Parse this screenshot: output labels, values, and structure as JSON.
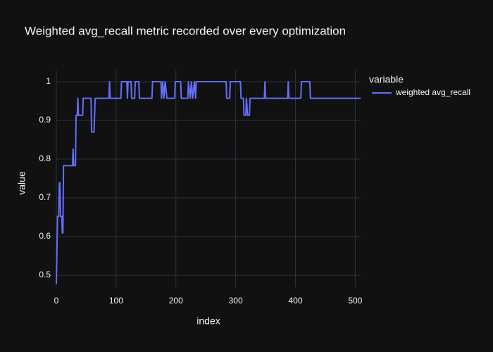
{
  "chart_data": {
    "type": "line",
    "title": "Weighted avg_recall metric recorded over every optimization",
    "x_label": "index",
    "y_label": "value",
    "legend_title": "variable",
    "legend_position": "right",
    "grid": true,
    "xlim": [
      0,
      509
    ],
    "ylim": [
      0.469,
      1.029
    ],
    "xticks": [
      0,
      100,
      200,
      300,
      400,
      500
    ],
    "yticks": [
      0.5,
      0.6,
      0.7,
      0.8,
      0.9,
      1
    ],
    "x": [
      0,
      2,
      4,
      5,
      6,
      7,
      9,
      10,
      11,
      12,
      27,
      28,
      29,
      32,
      33,
      35,
      36,
      37,
      44,
      45,
      58,
      59,
      63,
      64,
      65,
      88,
      89,
      90,
      108,
      109,
      118,
      119,
      120,
      125,
      126,
      131,
      132,
      138,
      139,
      160,
      161,
      175,
      176,
      178,
      180,
      182,
      185,
      198,
      199,
      208,
      209,
      220,
      221,
      224,
      226,
      228,
      231,
      233,
      234,
      284,
      285,
      290,
      291,
      308,
      309,
      313,
      314,
      317,
      318,
      320,
      323,
      324,
      348,
      349,
      350,
      387,
      388,
      389,
      409,
      410,
      424,
      425,
      509
    ],
    "series": [
      {
        "name": "weighted avg_recall",
        "color": "#636efa",
        "values": [
          0.478,
          0.652,
          0.652,
          0.739,
          0.739,
          0.652,
          0.652,
          0.609,
          0.609,
          0.783,
          0.783,
          0.826,
          0.783,
          0.783,
          0.913,
          0.913,
          0.957,
          0.913,
          0.913,
          0.957,
          0.957,
          0.87,
          0.87,
          0.913,
          0.957,
          0.957,
          1,
          0.957,
          0.957,
          1,
          1,
          0.957,
          1,
          1,
          0.957,
          0.957,
          1,
          1,
          0.957,
          0.957,
          1,
          1,
          0.957,
          1,
          0.957,
          1,
          0.957,
          0.957,
          1,
          1,
          0.957,
          0.957,
          1,
          0.957,
          1,
          0.957,
          1,
          0.957,
          1,
          1,
          0.957,
          0.957,
          1,
          1,
          0.957,
          0.957,
          0.913,
          0.913,
          0.957,
          0.913,
          0.913,
          0.957,
          0.957,
          1,
          0.957,
          0.957,
          1,
          0.957,
          0.957,
          1,
          1,
          0.957,
          0.957
        ]
      }
    ]
  }
}
